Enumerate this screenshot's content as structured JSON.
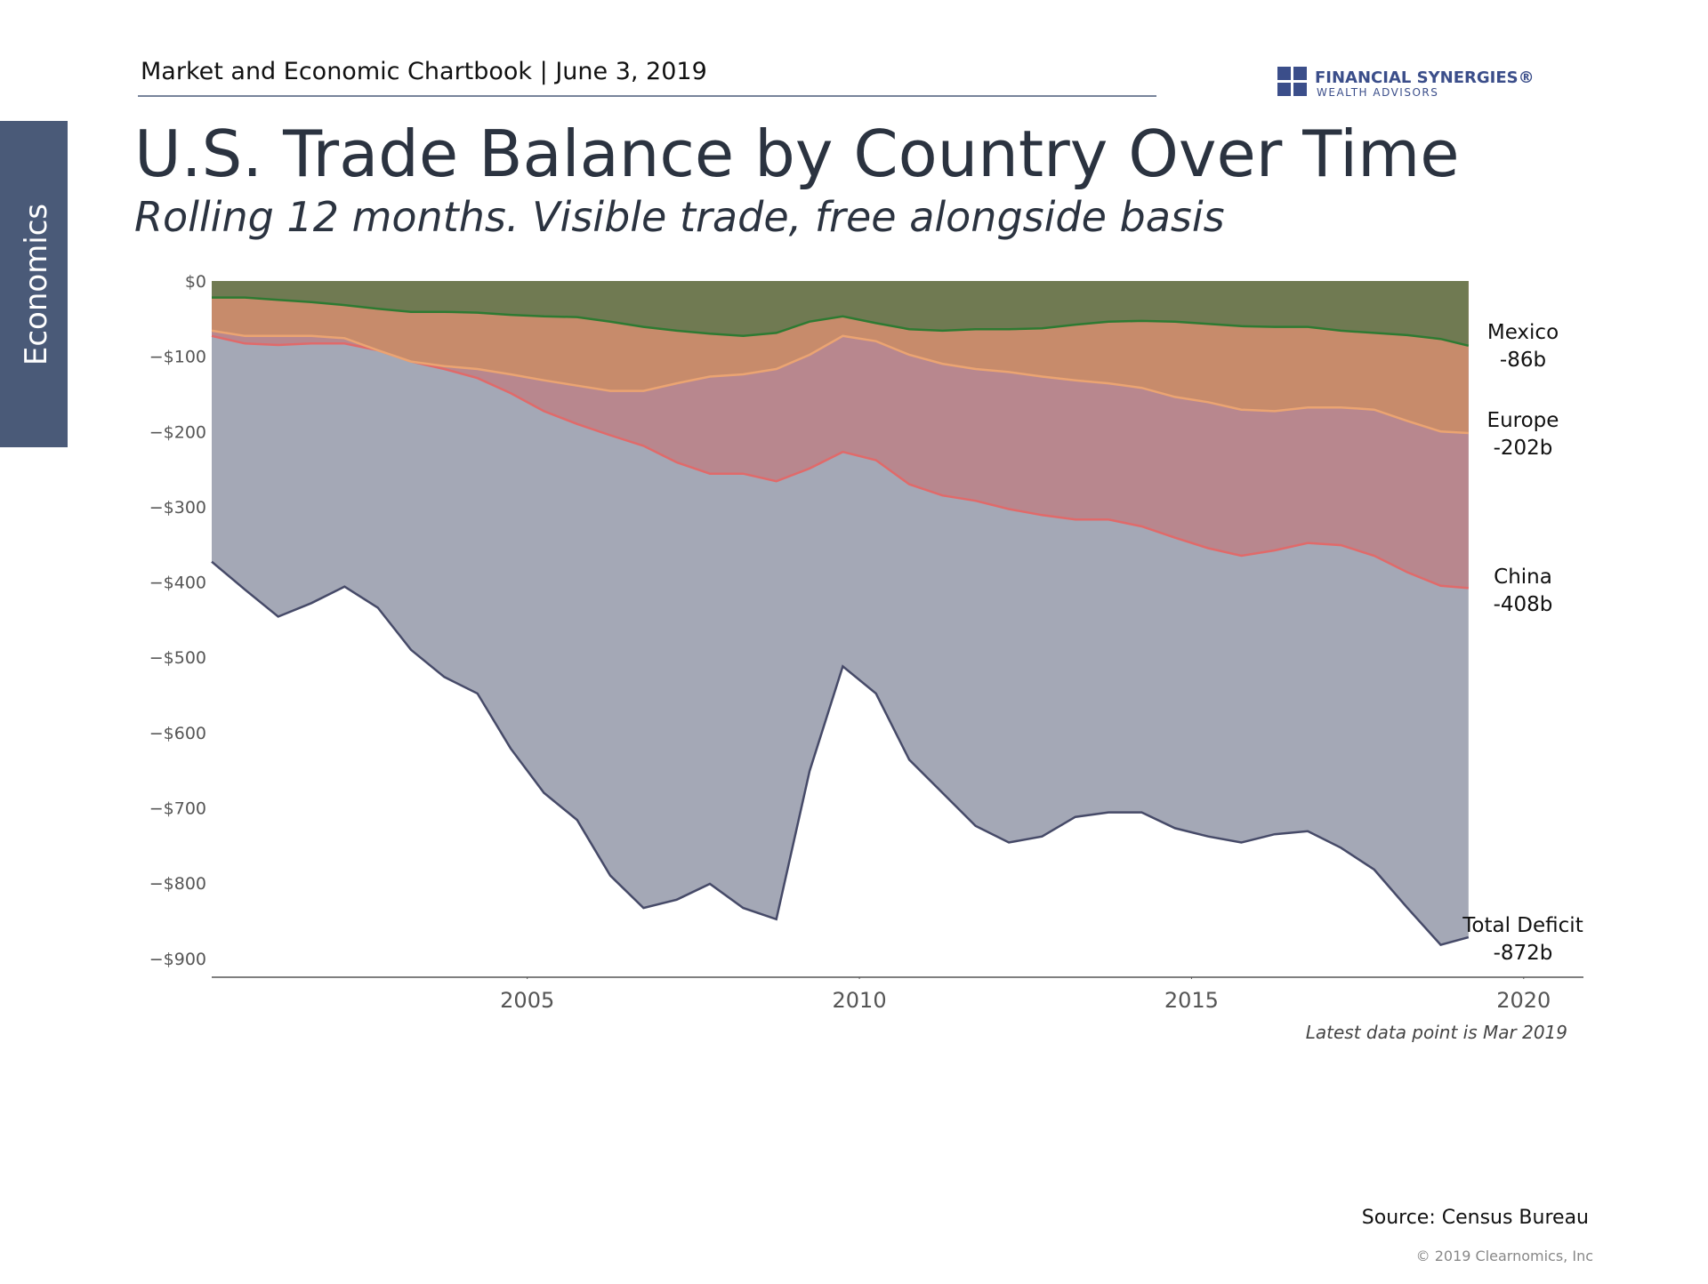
{
  "header": {
    "chartbook": "Market and Economic Chartbook | June 3, 2019",
    "logo_name": "FINANCIAL SYNERGIES®",
    "logo_sub": "WEALTH ADVISORS",
    "section": "Economics"
  },
  "chart_data": {
    "type": "area",
    "title": "U.S. Trade Balance by Country Over Time",
    "subtitle": "Rolling 12 months. Visible trade, free alongside basis",
    "note": "Latest data point is Mar 2019",
    "x": [
      2000.25,
      2000.75,
      2001.25,
      2001.75,
      2002.25,
      2002.75,
      2003.25,
      2003.75,
      2004.25,
      2004.75,
      2005.25,
      2005.75,
      2006.25,
      2006.75,
      2007.25,
      2007.75,
      2008.25,
      2008.75,
      2009.25,
      2009.75,
      2010.25,
      2010.75,
      2011.25,
      2011.75,
      2012.25,
      2012.75,
      2013.25,
      2013.75,
      2014.25,
      2014.75,
      2015.25,
      2015.75,
      2016.25,
      2016.75,
      2017.25,
      2017.75,
      2018.25,
      2018.75,
      2019.17
    ],
    "series": [
      {
        "name": "Total Deficit",
        "end_label": "-872b",
        "color": "#a4a8b6",
        "line_color": "#464a68",
        "values": [
          -373,
          -410,
          -446,
          -428,
          -406,
          -434,
          -490,
          -526,
          -548,
          -621,
          -680,
          -716,
          -790,
          -833,
          -822,
          -801,
          -833,
          -848,
          -651,
          -512,
          -548,
          -636,
          -680,
          -724,
          -746,
          -738,
          -712,
          -706,
          -706,
          -727,
          -738,
          -746,
          -735,
          -731,
          -753,
          -782,
          -833,
          -882,
          -872
        ]
      },
      {
        "name": "China",
        "end_label": "-408b",
        "color": "#b8878e",
        "line_color": "#e06a6a",
        "values": [
          -73,
          -83,
          -85,
          -83,
          -83,
          -92,
          -107,
          -117,
          -129,
          -149,
          -173,
          -190,
          -205,
          -219,
          -241,
          -256,
          -256,
          -266,
          -249,
          -227,
          -238,
          -270,
          -285,
          -292,
          -303,
          -311,
          -317,
          -317,
          -326,
          -341,
          -355,
          -365,
          -358,
          -348,
          -351,
          -365,
          -387,
          -405,
          -408
        ]
      },
      {
        "name": "Europe",
        "end_label": "-202b",
        "color": "#c78b6b",
        "line_color": "#eba472",
        "values": [
          -66,
          -73,
          -73,
          -73,
          -76,
          -92,
          -107,
          -113,
          -117,
          -124,
          -132,
          -139,
          -146,
          -146,
          -136,
          -127,
          -124,
          -117,
          -98,
          -73,
          -80,
          -98,
          -110,
          -117,
          -121,
          -127,
          -132,
          -136,
          -142,
          -154,
          -161,
          -171,
          -173,
          -168,
          -168,
          -171,
          -186,
          -200,
          -202
        ]
      },
      {
        "name": "Mexico",
        "end_label": "-86b",
        "color": "#707a52",
        "line_color": "#2e7a32",
        "values": [
          -22,
          -22,
          -25,
          -28,
          -32,
          -37,
          -41,
          -41,
          -42,
          -45,
          -47,
          -48,
          -54,
          -61,
          -66,
          -70,
          -73,
          -69,
          -54,
          -47,
          -56,
          -64,
          -66,
          -64,
          -64,
          -63,
          -58,
          -54,
          -53,
          -54,
          -57,
          -60,
          -61,
          -61,
          -66,
          -69,
          -72,
          -77,
          -86
        ]
      }
    ],
    "xlim": [
      2000.25,
      2020.9
    ],
    "xticks": [
      2005,
      2010,
      2015,
      2020
    ],
    "ylim": [
      -925,
      0
    ],
    "yticks": [
      {
        "value": 0,
        "label": "$0"
      },
      {
        "value": -100,
        "label": "−$100"
      },
      {
        "value": -200,
        "label": "−$200"
      },
      {
        "value": -300,
        "label": "−$300"
      },
      {
        "value": -400,
        "label": "−$400"
      },
      {
        "value": -500,
        "label": "−$500"
      },
      {
        "value": -600,
        "label": "−$600"
      },
      {
        "value": -700,
        "label": "−$700"
      },
      {
        "value": -800,
        "label": "−$800"
      },
      {
        "value": -900,
        "label": "−$900"
      }
    ],
    "grid": false
  },
  "footer": {
    "source": "Source: Census Bureau",
    "copyright": "© 2019 Clearnomics, Inc"
  }
}
